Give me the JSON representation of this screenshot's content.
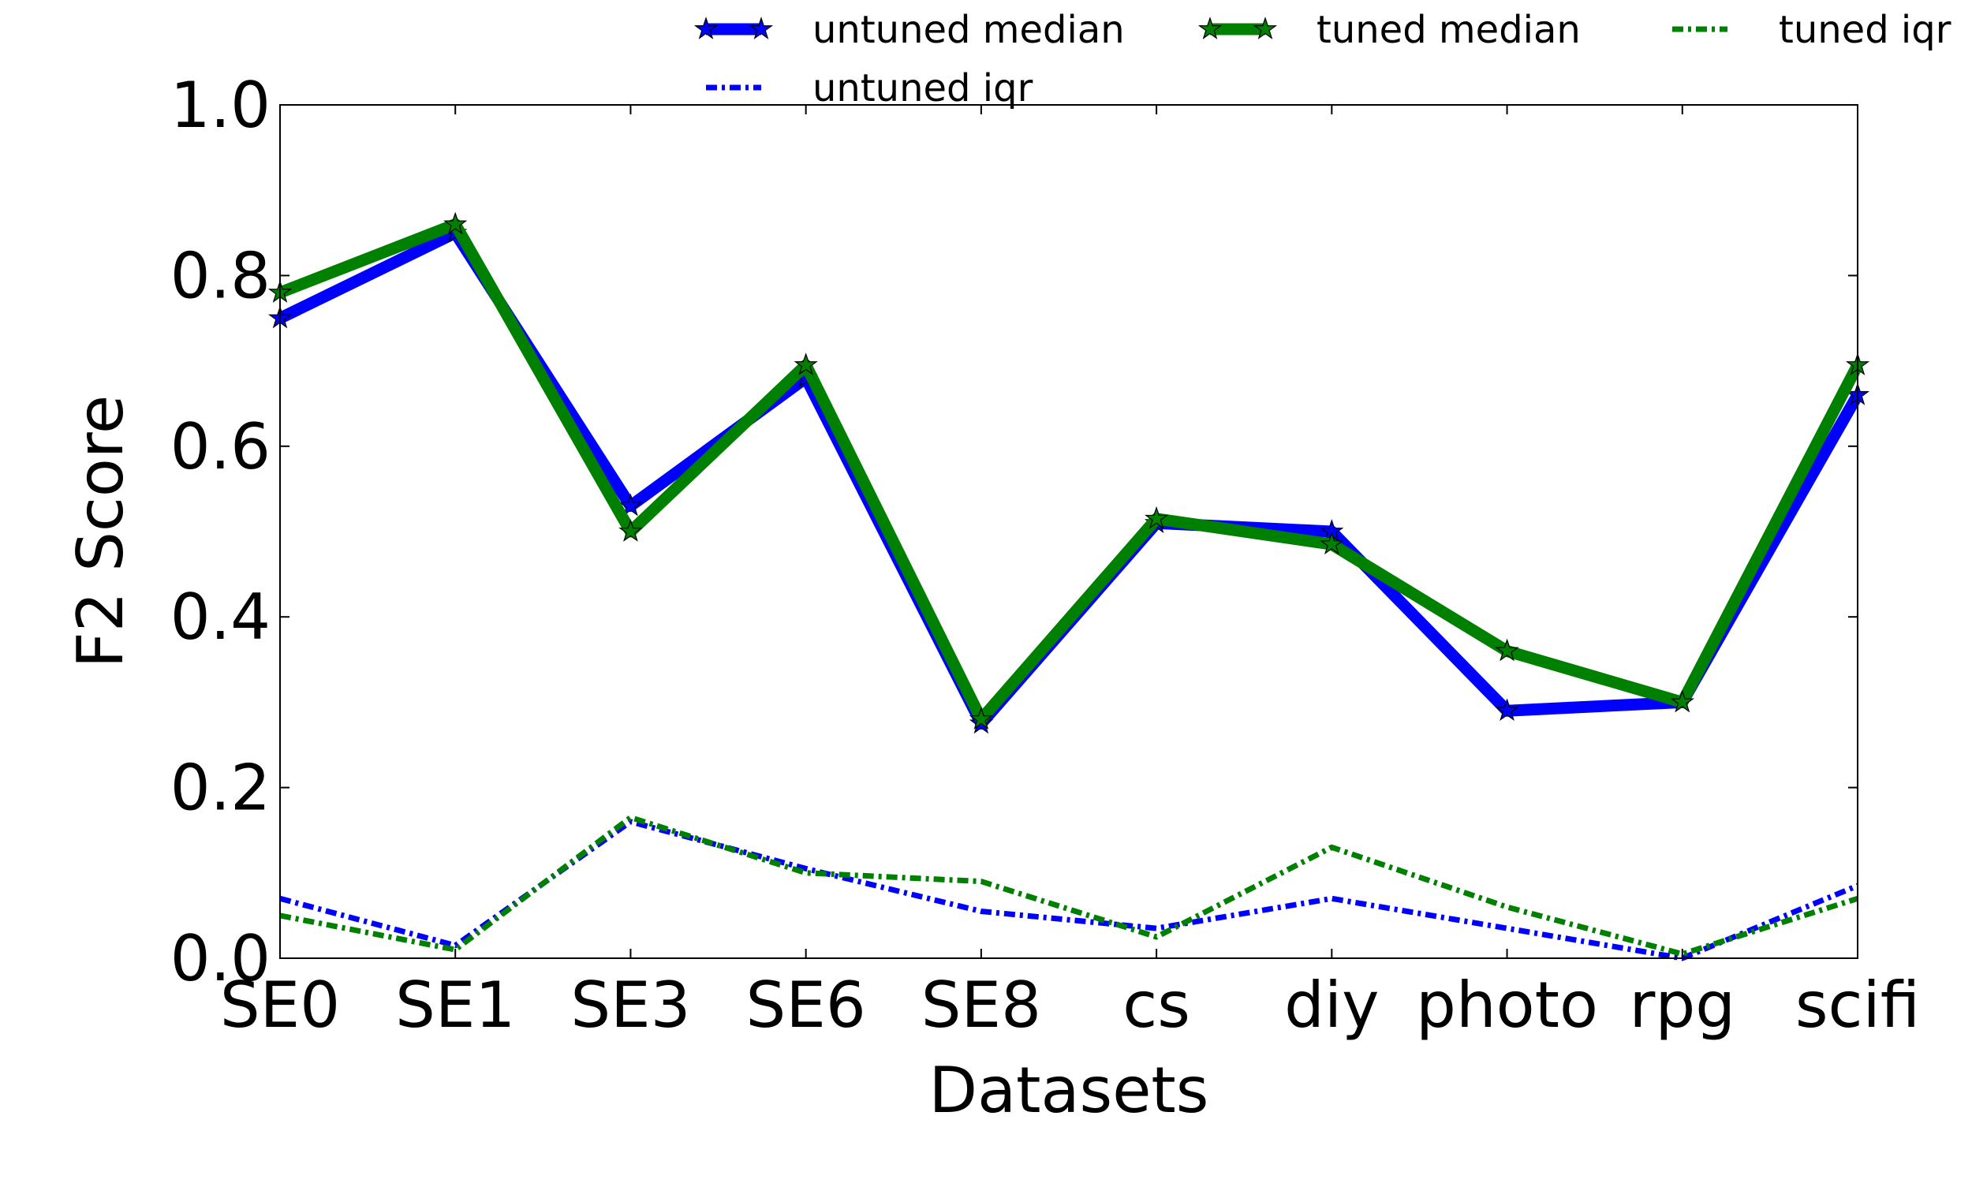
{
  "colors": {
    "untuned": "#0000ff",
    "tuned": "#008000",
    "frame": "#000000",
    "background": "#ffffff"
  },
  "chart_data": {
    "type": "line",
    "title": "",
    "xlabel": "Datasets",
    "ylabel": "F2 Score",
    "categories": [
      "SE0",
      "SE1",
      "SE3",
      "SE6",
      "SE8",
      "cs",
      "diy",
      "photo",
      "rpg",
      "scifi"
    ],
    "ylim": [
      0.0,
      1.0
    ],
    "yticks": [
      0.0,
      0.2,
      0.4,
      0.6,
      0.8,
      1.0
    ],
    "ytick_labels": [
      "0.0",
      "0.2",
      "0.4",
      "0.6",
      "0.8",
      "1.0"
    ],
    "grid": false,
    "legend_position": "top",
    "series": [
      {
        "name": "untuned median",
        "color": "#0000ff",
        "style": "solid",
        "marker": "star",
        "values": [
          0.75,
          0.85,
          0.53,
          0.68,
          0.275,
          0.51,
          0.5,
          0.29,
          0.3,
          0.66
        ]
      },
      {
        "name": "tuned median",
        "color": "#008000",
        "style": "solid",
        "marker": "star",
        "values": [
          0.78,
          0.86,
          0.5,
          0.695,
          0.28,
          0.515,
          0.485,
          0.36,
          0.3,
          0.695
        ]
      },
      {
        "name": "tuned iqr",
        "color": "#008000",
        "style": "dashdot",
        "marker": "none",
        "values": [
          0.05,
          0.01,
          0.165,
          0.1,
          0.09,
          0.025,
          0.13,
          0.06,
          0.005,
          0.07
        ]
      },
      {
        "name": "untuned iqr",
        "color": "#0000ff",
        "style": "dashdot",
        "marker": "none",
        "values": [
          0.07,
          0.015,
          0.16,
          0.105,
          0.055,
          0.035,
          0.07,
          0.035,
          0.0,
          0.085
        ]
      }
    ]
  }
}
